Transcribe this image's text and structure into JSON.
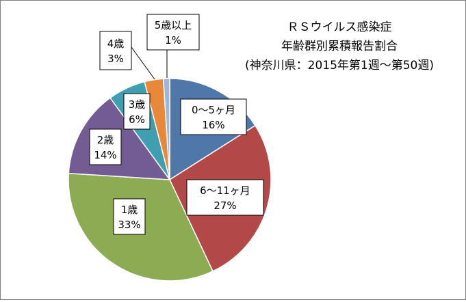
{
  "chart_data": {
    "type": "pie",
    "title": "ＲＳウイルス感染症",
    "subtitle": "年齢群別累積報告割合",
    "subtitle2": "(神奈川県：2015年第1週～第50週)",
    "start_angle": "12 o'clock, clockwise",
    "legend": "none",
    "slices": [
      {
        "label": "0～5ヶ月",
        "value": 16,
        "value_text": "16%",
        "color": "#4f78a8"
      },
      {
        "label": "6～11ヶ月",
        "value": 27,
        "value_text": "27%",
        "color": "#b24948"
      },
      {
        "label": "1歳",
        "value": 33,
        "value_text": "33%",
        "color": "#8cab52"
      },
      {
        "label": "2歳",
        "value": 14,
        "value_text": "14%",
        "color": "#735b93"
      },
      {
        "label": "3歳",
        "value": 6,
        "value_text": "6%",
        "color": "#3f9fb1"
      },
      {
        "label": "4歳",
        "value": 3,
        "value_text": "3%",
        "color": "#e98839"
      },
      {
        "label": "5歳以上",
        "value": 1,
        "value_text": "1%",
        "color": "#9fb6da"
      }
    ]
  }
}
